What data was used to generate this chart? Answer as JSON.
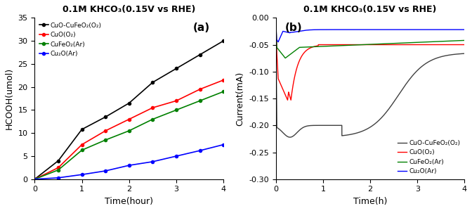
{
  "title": "0.1M KHCO₃(0.15V vs RHE)",
  "panel_a": {
    "xlabel": "Time(hour)",
    "ylabel": "HCOOH(umol)",
    "xlim": [
      0,
      4
    ],
    "ylim": [
      0,
      35
    ],
    "yticks": [
      0,
      5,
      10,
      15,
      20,
      25,
      30,
      35
    ],
    "xticks": [
      0,
      1,
      2,
      3,
      4
    ],
    "label": "(a)",
    "series": {
      "CuO-CuFeO₂(O₂)": {
        "color": "black",
        "x": [
          0,
          0.5,
          1,
          1.5,
          2,
          2.5,
          3,
          3.5,
          4
        ],
        "y": [
          0,
          4.0,
          10.8,
          13.5,
          16.5,
          21.0,
          24.0,
          27.0,
          30.0
        ]
      },
      "CuO(O₂)": {
        "color": "red",
        "x": [
          0,
          0.5,
          1,
          1.5,
          2,
          2.5,
          3,
          3.5,
          4
        ],
        "y": [
          0,
          2.5,
          7.5,
          10.5,
          13.0,
          15.5,
          17.0,
          19.5,
          21.5
        ]
      },
      "CuFeO₂(Ar)": {
        "color": "green",
        "x": [
          0,
          0.5,
          1,
          1.5,
          2,
          2.5,
          3,
          3.5,
          4
        ],
        "y": [
          0,
          2.0,
          6.3,
          8.5,
          10.5,
          13.0,
          15.0,
          17.0,
          19.0
        ]
      },
      "Cu₂O(Ar)": {
        "color": "blue",
        "x": [
          0,
          0.5,
          1,
          1.5,
          2,
          2.5,
          3,
          3.5,
          4
        ],
        "y": [
          0,
          0.3,
          1.0,
          1.8,
          3.0,
          3.8,
          5.0,
          6.2,
          7.5
        ]
      }
    }
  },
  "panel_b": {
    "xlabel": "Time(h)",
    "ylabel": "Current(mA)",
    "xlim": [
      0,
      4
    ],
    "ylim": [
      -0.3,
      0.0
    ],
    "yticks": [
      0.0,
      -0.05,
      -0.1,
      -0.15,
      -0.2,
      -0.25,
      -0.3
    ],
    "xticks": [
      0,
      1,
      2,
      3,
      4
    ],
    "label": "(b)",
    "colors": [
      "#404040",
      "red",
      "green",
      "blue"
    ],
    "labels": [
      "CuO-CuFeO₂(O₂)",
      "CuO(O₂)",
      "CuFeO₂(Ar)",
      "Cu₂O(Ar)"
    ]
  }
}
